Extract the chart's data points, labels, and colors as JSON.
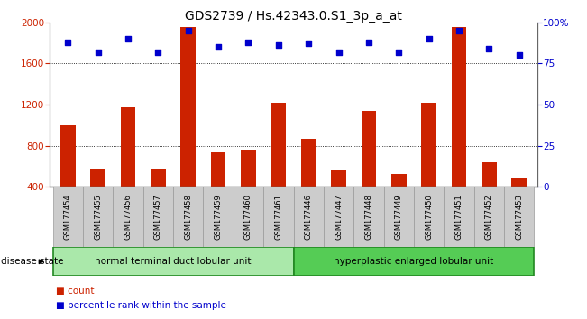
{
  "title": "GDS2739 / Hs.42343.0.S1_3p_a_at",
  "samples": [
    "GSM177454",
    "GSM177455",
    "GSM177456",
    "GSM177457",
    "GSM177458",
    "GSM177459",
    "GSM177460",
    "GSM177461",
    "GSM177446",
    "GSM177447",
    "GSM177448",
    "GSM177449",
    "GSM177450",
    "GSM177451",
    "GSM177452",
    "GSM177453"
  ],
  "counts": [
    1000,
    580,
    1175,
    575,
    1950,
    730,
    760,
    1220,
    870,
    555,
    1140,
    520,
    1220,
    1950,
    640,
    480
  ],
  "percentiles": [
    88,
    82,
    90,
    82,
    95,
    85,
    88,
    86,
    87,
    82,
    88,
    82,
    90,
    95,
    84,
    80
  ],
  "group1_count": 8,
  "group2_count": 8,
  "group1_label": "normal terminal duct lobular unit",
  "group2_label": "hyperplastic enlarged lobular unit",
  "disease_state_label": "disease state",
  "ylim_left": [
    400,
    2000
  ],
  "ylim_right": [
    0,
    100
  ],
  "yticks_left": [
    400,
    800,
    1200,
    1600,
    2000
  ],
  "yticks_right": [
    0,
    25,
    50,
    75,
    100
  ],
  "ytick_labels_right": [
    "0",
    "25",
    "50",
    "75",
    "100%"
  ],
  "bar_color": "#cc2200",
  "dot_color": "#0000cc",
  "bg_plot": "#ffffff",
  "bg_xticklabels": "#cccccc",
  "bg_group1": "#aae8aa",
  "bg_group2": "#55cc55",
  "legend_count_label": "count",
  "legend_pct_label": "percentile rank within the sample",
  "title_fontsize": 10,
  "tick_fontsize": 7.5,
  "legend_fontsize": 7.5
}
